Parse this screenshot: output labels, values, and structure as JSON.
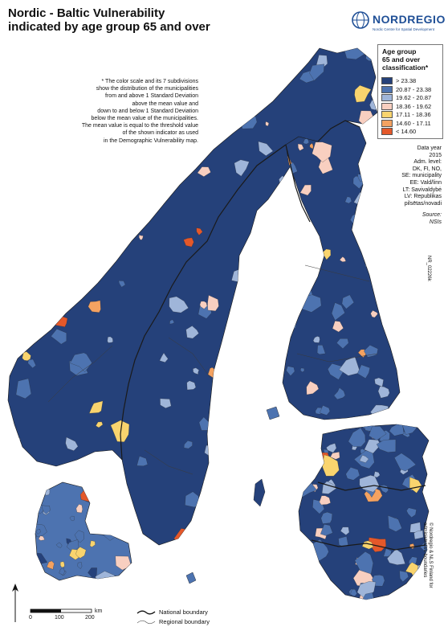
{
  "title": {
    "line1": "Nordic - Baltic Vulnerability",
    "line2": "indicated by age group 65 and over"
  },
  "logo": {
    "name": "NORDREGIO",
    "tagline": "Nordic Centre for Spatial Development"
  },
  "note": {
    "lines": [
      "* The color scale and its 7 subdivisions",
      "show the distribution of the municipalities",
      "from and above 1 Standard Deviation",
      "above the mean value and",
      "down to and below 1 Standard Deviation",
      "below the mean value of the municipalities.",
      "The mean value is equal to the threshold value",
      "of the shown indicator as used",
      "in the Demographic Vulnerability map."
    ]
  },
  "legend": {
    "title_lines": [
      "Age group",
      "65 and over",
      "classification*"
    ],
    "classes": [
      {
        "label": "> 23.38",
        "color": "#25417a"
      },
      {
        "label": "20.87 - 23.38",
        "color": "#4d73b0"
      },
      {
        "label": "19.62 - 20.87",
        "color": "#9fb5d9"
      },
      {
        "label": "18.36 - 19.62",
        "color": "#f8cfc0"
      },
      {
        "label": "17.11 - 18.36",
        "color": "#f9d46e"
      },
      {
        "label": "14.60 - 17.11",
        "color": "#f4a261"
      },
      {
        "label": "< 14.60",
        "color": "#e4582a"
      }
    ]
  },
  "meta": {
    "data_year_label": "Data year",
    "data_year": "2015",
    "adm_level_lines": [
      "Adm. level:",
      "DK, FI, NO,",
      "SE: municipality",
      "EE: Vald/linn",
      "LT: Savivaldybė",
      "LV: Republikas",
      "pilsētas/novadi"
    ],
    "source_label": "Source:",
    "source": "NSIs"
  },
  "map_reference": "NR_02226k",
  "credit_lines": [
    "© Nordregio & NLS Finland for",
    "administrative boundaries"
  ],
  "scale_bar": {
    "ticks": [
      "0",
      "100",
      "200"
    ],
    "unit": "km"
  },
  "boundary_legend": {
    "national": "National boundary",
    "regional": "Regional boundary"
  },
  "colors": {
    "water": "#ffffff",
    "land_default": "#25417a",
    "boundary": "#2b2b2b"
  }
}
